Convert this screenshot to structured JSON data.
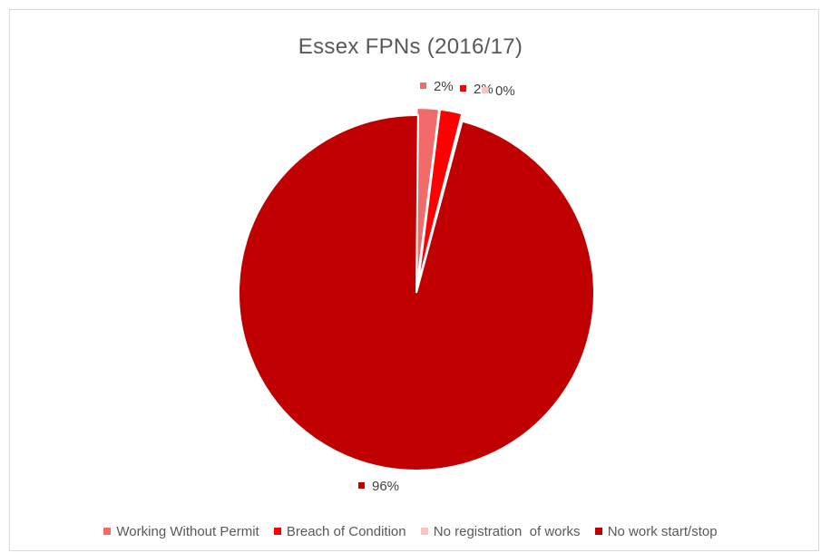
{
  "chart_data": {
    "type": "pie",
    "title": "Essex FPNs (2016/17)",
    "categories": [
      "Working Without Permit",
      "Breach of Condition",
      "No registration  of works",
      "No work start/stop"
    ],
    "values": [
      2,
      2,
      0,
      96
    ],
    "data_labels": [
      "2%",
      "2%",
      "0%",
      "96%"
    ],
    "colors": [
      "#f26b6b",
      "#ff0000",
      "#f9c4c4",
      "#c00000"
    ],
    "exploded": true,
    "legend_position": "bottom"
  }
}
